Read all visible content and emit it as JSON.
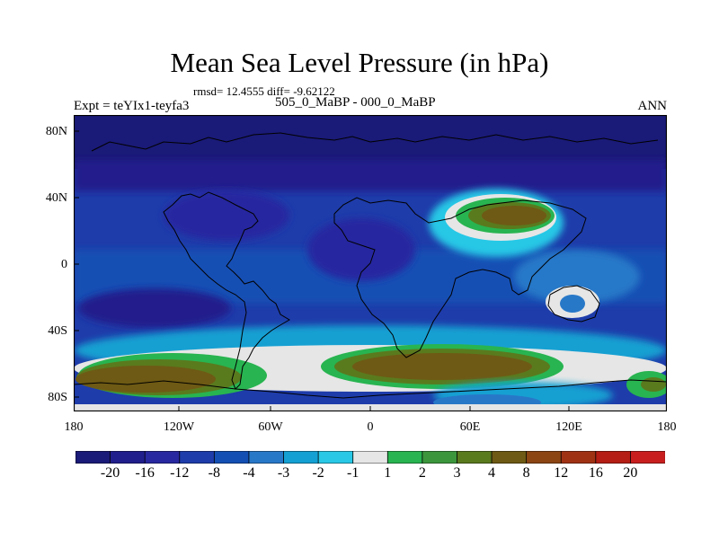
{
  "title": "Mean Sea Level Pressure (in hPa)",
  "stats": "rmsd= 12.4555  diff= -9.62122",
  "experiment": "Expt = teYIx1-teyfa3",
  "subtitle": "505_0_MaBP - 000_0_MaBP",
  "season": "ANN",
  "lat_labels": [
    "80N",
    "40N",
    "0",
    "40S",
    "80S"
  ],
  "lon_labels": [
    "180",
    "120W",
    "60W",
    "0",
    "60E",
    "120E",
    "180"
  ],
  "colorbar": {
    "labels": [
      "-20",
      "-16",
      "-12",
      "-8",
      "-4",
      "-3",
      "-2",
      "-1",
      "1",
      "2",
      "3",
      "4",
      "8",
      "12",
      "16",
      "20"
    ],
    "colors": [
      "#1a1a78",
      "#201e8c",
      "#2828a0",
      "#1e3caa",
      "#1450b4",
      "#2878c8",
      "#14a0d2",
      "#28c8e6",
      "#e6e6e6",
      "#28b450",
      "#3c963c",
      "#5a7a1e",
      "#6e5a14",
      "#8c4614",
      "#a03214",
      "#b41e14",
      "#c81e1e"
    ]
  },
  "field_colors": {
    "deep": "#1a1a78",
    "navy": "#201e8c",
    "dark_blue": "#2828a0",
    "blue": "#1e3caa",
    "mid_blue": "#1450b4",
    "light_blue": "#2878c8",
    "cyan": "#14a0d2",
    "aqua": "#28c8e6",
    "white": "#e6e6e6",
    "green": "#28b450",
    "dark_green": "#3c963c",
    "olive": "#5a7a1e",
    "brown": "#6e5a14"
  }
}
